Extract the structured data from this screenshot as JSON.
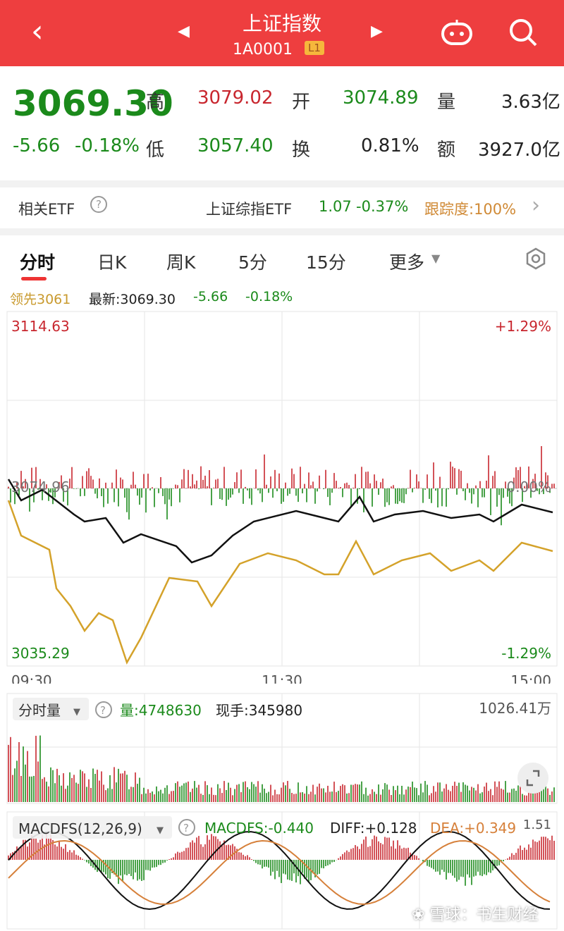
{
  "header": {
    "title": "上证指数",
    "code": "1A0001",
    "level": "L1"
  },
  "quote": {
    "price": "3069.30",
    "change": "-5.66",
    "change_pct": "-0.18%",
    "high_label": "高",
    "high": "3079.02",
    "low_label": "低",
    "low": "3057.40",
    "open_label": "开",
    "open": "3074.89",
    "turnover_label": "换",
    "turnover": "0.81%",
    "volume_label": "量",
    "volume": "3.63亿",
    "amount_label": "额",
    "amount": "3927.0亿"
  },
  "etf": {
    "label": "相关ETF",
    "name": "上证综指ETF",
    "price": "1.07",
    "pct": "-0.37%",
    "tracking": "跟踪度:100%"
  },
  "tabs": [
    "分时",
    "日K",
    "周K",
    "5分",
    "15分",
    "更多"
  ],
  "info": {
    "lead": "领先3061",
    "latest": "最新:3069.30",
    "change": "-5.66",
    "pct": "-0.18%"
  },
  "intraday": {
    "y_top": "3114.63",
    "y_mid": "3074.96",
    "y_bot": "3035.29",
    "pct_top": "+1.29%",
    "pct_mid": "0.00%",
    "pct_bot": "-1.29%",
    "times": [
      "09:30",
      "11:30",
      "15:00"
    ]
  },
  "volume_panel": {
    "selector": "分时量",
    "vol": "量:4748630",
    "hand": "现手:345980",
    "max": "1026.41万"
  },
  "macd": {
    "selector": "MACDFS(12,26,9)",
    "macdfs": "MACDFS:-0.440",
    "diff": "DIFF:+0.128",
    "dea": "DEA:+0.349",
    "max": "1.51"
  },
  "watermark": "雪球：书生财经",
  "colors": {
    "header_bg": "#ee3e3f",
    "down": "#1b8a1b",
    "up": "#c8262e",
    "lead_line": "#d4a22a",
    "price_line": "#111111"
  }
}
